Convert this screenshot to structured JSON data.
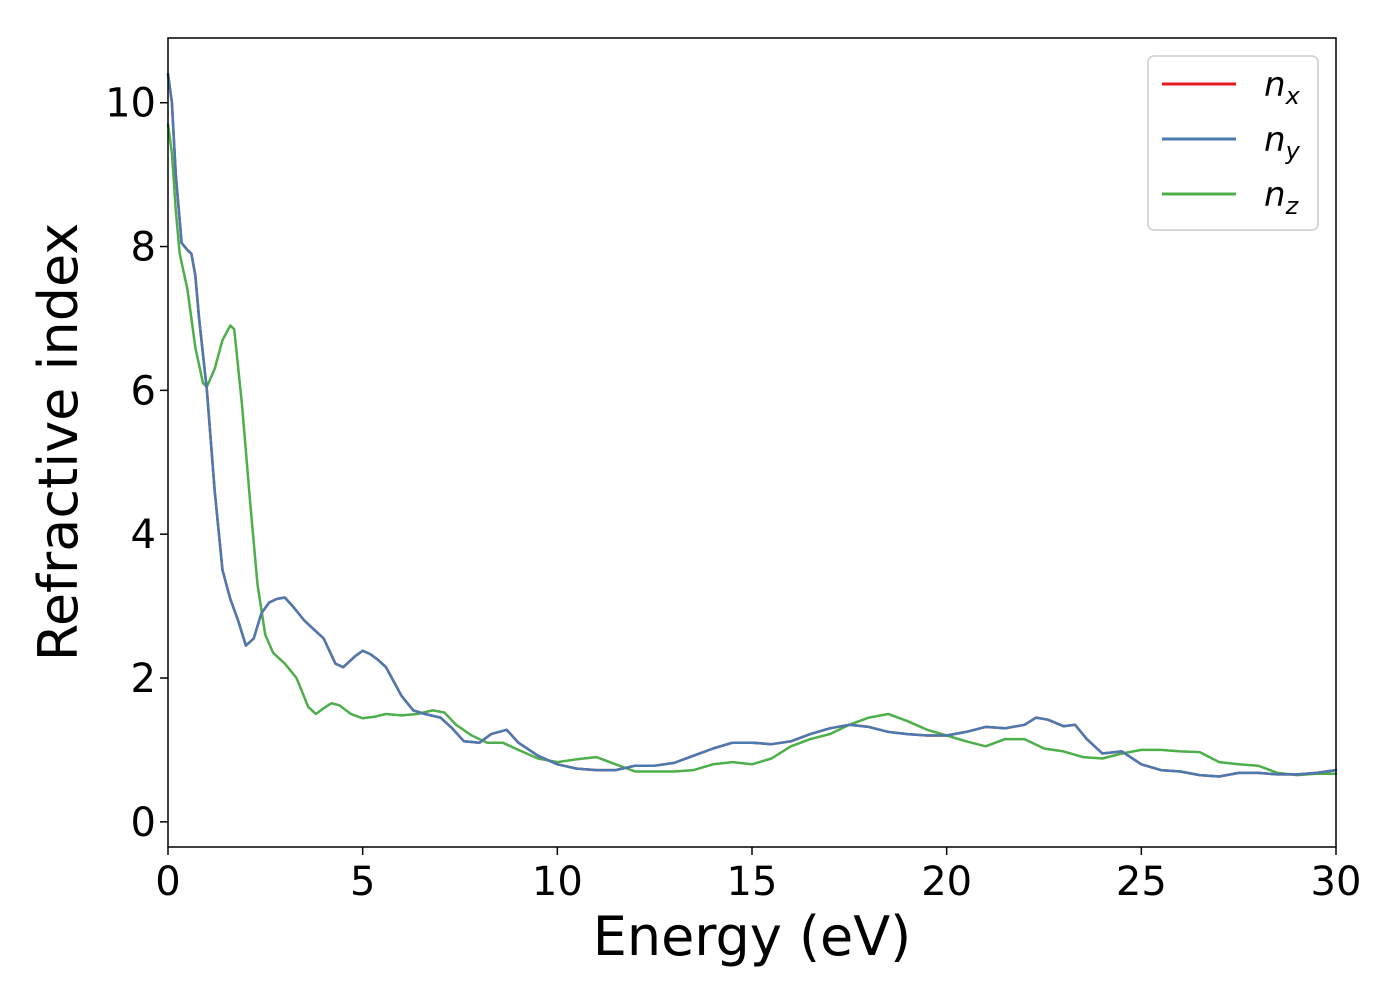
{
  "chart_data": {
    "type": "line",
    "title": "",
    "xlabel": "Energy (eV)",
    "ylabel": "Refractive index",
    "xlim": [
      0,
      30
    ],
    "ylim": [
      -0.35,
      10.9
    ],
    "xticks": [
      0,
      5,
      10,
      15,
      20,
      25,
      30
    ],
    "yticks": [
      0,
      2,
      4,
      6,
      8,
      10
    ],
    "grid": false,
    "legend_position": "top-right",
    "series": [
      {
        "name": "n",
        "subscript": "x",
        "color": "#e41a1c",
        "x": [
          0.0,
          0.1,
          0.2,
          0.35,
          0.5,
          0.6,
          0.7,
          0.8,
          1.0,
          1.2,
          1.4,
          1.6,
          1.8,
          2.0,
          2.2,
          2.4,
          2.6,
          2.8,
          3.0,
          3.2,
          3.5,
          3.8,
          4.0,
          4.3,
          4.5,
          4.8,
          5.0,
          5.2,
          5.4,
          5.6,
          5.8,
          6.0,
          6.3,
          6.6,
          7.0,
          7.3,
          7.6,
          8.0,
          8.3,
          8.7,
          9.0,
          9.5,
          10.0,
          10.5,
          11.0,
          11.5,
          12.0,
          12.5,
          13.0,
          13.5,
          14.0,
          14.5,
          15.0,
          15.5,
          16.0,
          16.5,
          17.0,
          17.5,
          18.0,
          18.5,
          19.0,
          19.5,
          20.0,
          20.5,
          21.0,
          21.5,
          22.0,
          22.3,
          22.6,
          23.0,
          23.3,
          23.6,
          24.0,
          24.5,
          25.0,
          25.5,
          26.0,
          26.5,
          27.0,
          27.5,
          28.0,
          28.5,
          29.0,
          29.5,
          30.0
        ],
        "values": [
          10.4,
          10.0,
          9.0,
          8.05,
          7.95,
          7.9,
          7.6,
          7.0,
          6.0,
          4.6,
          3.5,
          3.1,
          2.8,
          2.45,
          2.55,
          2.9,
          3.05,
          3.1,
          3.12,
          3.0,
          2.8,
          2.65,
          2.55,
          2.2,
          2.15,
          2.3,
          2.38,
          2.33,
          2.25,
          2.15,
          1.95,
          1.75,
          1.55,
          1.5,
          1.45,
          1.3,
          1.12,
          1.1,
          1.22,
          1.28,
          1.1,
          0.92,
          0.8,
          0.74,
          0.72,
          0.72,
          0.78,
          0.78,
          0.82,
          0.92,
          1.02,
          1.1,
          1.1,
          1.08,
          1.12,
          1.22,
          1.3,
          1.35,
          1.32,
          1.25,
          1.22,
          1.2,
          1.2,
          1.25,
          1.32,
          1.3,
          1.35,
          1.45,
          1.42,
          1.33,
          1.35,
          1.15,
          0.95,
          0.98,
          0.8,
          0.72,
          0.7,
          0.65,
          0.63,
          0.68,
          0.68,
          0.66,
          0.66,
          0.68,
          0.72
        ]
      },
      {
        "name": "n",
        "subscript": "y",
        "color": "#4a7ab0",
        "x": [
          0.0,
          0.1,
          0.2,
          0.35,
          0.5,
          0.6,
          0.7,
          0.8,
          1.0,
          1.2,
          1.4,
          1.6,
          1.8,
          2.0,
          2.2,
          2.4,
          2.6,
          2.8,
          3.0,
          3.2,
          3.5,
          3.8,
          4.0,
          4.3,
          4.5,
          4.8,
          5.0,
          5.2,
          5.4,
          5.6,
          5.8,
          6.0,
          6.3,
          6.6,
          7.0,
          7.3,
          7.6,
          8.0,
          8.3,
          8.7,
          9.0,
          9.5,
          10.0,
          10.5,
          11.0,
          11.5,
          12.0,
          12.5,
          13.0,
          13.5,
          14.0,
          14.5,
          15.0,
          15.5,
          16.0,
          16.5,
          17.0,
          17.5,
          18.0,
          18.5,
          19.0,
          19.5,
          20.0,
          20.5,
          21.0,
          21.5,
          22.0,
          22.3,
          22.6,
          23.0,
          23.3,
          23.6,
          24.0,
          24.5,
          25.0,
          25.5,
          26.0,
          26.5,
          27.0,
          27.5,
          28.0,
          28.5,
          29.0,
          29.5,
          30.0
        ],
        "values": [
          10.4,
          10.0,
          9.0,
          8.05,
          7.95,
          7.9,
          7.6,
          7.0,
          6.0,
          4.6,
          3.5,
          3.1,
          2.8,
          2.45,
          2.55,
          2.9,
          3.05,
          3.1,
          3.12,
          3.0,
          2.8,
          2.65,
          2.55,
          2.2,
          2.15,
          2.3,
          2.38,
          2.33,
          2.25,
          2.15,
          1.95,
          1.75,
          1.55,
          1.5,
          1.45,
          1.3,
          1.12,
          1.1,
          1.22,
          1.28,
          1.1,
          0.92,
          0.8,
          0.74,
          0.72,
          0.72,
          0.78,
          0.78,
          0.82,
          0.92,
          1.02,
          1.1,
          1.1,
          1.08,
          1.12,
          1.22,
          1.3,
          1.35,
          1.32,
          1.25,
          1.22,
          1.2,
          1.2,
          1.25,
          1.32,
          1.3,
          1.35,
          1.45,
          1.42,
          1.33,
          1.35,
          1.15,
          0.95,
          0.98,
          0.8,
          0.72,
          0.7,
          0.65,
          0.63,
          0.68,
          0.68,
          0.66,
          0.66,
          0.68,
          0.72
        ]
      },
      {
        "name": "n",
        "subscript": "z",
        "color": "#4daf4a",
        "x": [
          0.0,
          0.1,
          0.2,
          0.3,
          0.5,
          0.7,
          0.9,
          1.0,
          1.2,
          1.4,
          1.6,
          1.7,
          1.9,
          2.1,
          2.3,
          2.5,
          2.7,
          3.0,
          3.3,
          3.6,
          3.8,
          4.0,
          4.2,
          4.4,
          4.7,
          5.0,
          5.3,
          5.6,
          6.0,
          6.4,
          6.8,
          7.1,
          7.4,
          7.8,
          8.2,
          8.6,
          9.0,
          9.5,
          10.0,
          10.5,
          11.0,
          11.5,
          12.0,
          12.5,
          13.0,
          13.5,
          14.0,
          14.5,
          15.0,
          15.5,
          16.0,
          16.5,
          17.0,
          17.5,
          18.0,
          18.5,
          19.0,
          19.5,
          20.0,
          20.5,
          21.0,
          21.5,
          22.0,
          22.5,
          23.0,
          23.5,
          24.0,
          24.5,
          25.0,
          25.5,
          26.0,
          26.5,
          27.0,
          27.5,
          28.0,
          28.5,
          29.0,
          29.5,
          30.0
        ],
        "values": [
          9.7,
          9.3,
          8.5,
          7.9,
          7.4,
          6.6,
          6.1,
          6.05,
          6.3,
          6.7,
          6.9,
          6.85,
          5.8,
          4.5,
          3.3,
          2.6,
          2.35,
          2.2,
          2.0,
          1.6,
          1.5,
          1.58,
          1.65,
          1.62,
          1.5,
          1.44,
          1.46,
          1.5,
          1.48,
          1.5,
          1.55,
          1.52,
          1.35,
          1.2,
          1.1,
          1.1,
          1.0,
          0.88,
          0.83,
          0.87,
          0.9,
          0.8,
          0.7,
          0.7,
          0.7,
          0.72,
          0.8,
          0.83,
          0.8,
          0.88,
          1.05,
          1.15,
          1.22,
          1.35,
          1.45,
          1.5,
          1.4,
          1.28,
          1.2,
          1.12,
          1.05,
          1.15,
          1.15,
          1.02,
          0.98,
          0.9,
          0.88,
          0.95,
          1.0,
          1.0,
          0.98,
          0.97,
          0.83,
          0.8,
          0.78,
          0.68,
          0.65,
          0.67,
          0.67
        ]
      }
    ]
  }
}
